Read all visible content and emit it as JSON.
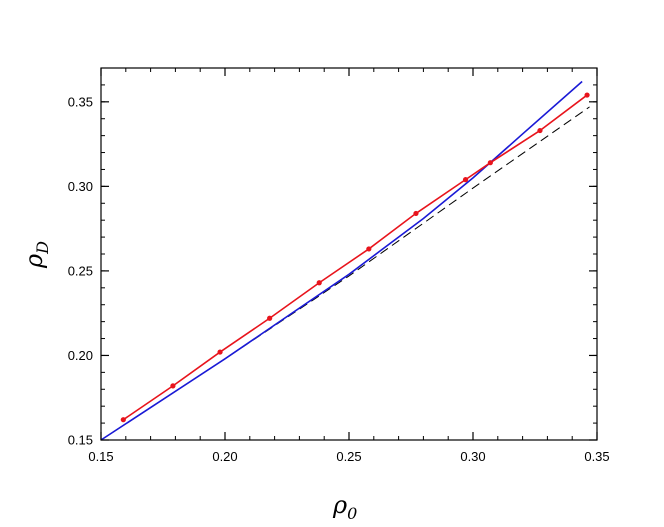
{
  "chart_data": {
    "type": "line",
    "xlabel": "ρ",
    "xlabel_sub": "0",
    "ylabel": "ρ",
    "ylabel_sub": "D",
    "xlim": [
      0.15,
      0.35
    ],
    "ylim": [
      0.15,
      0.37
    ],
    "xticks": [
      0.15,
      0.2,
      0.25,
      0.3,
      0.35
    ],
    "xtick_labels": [
      "0.15",
      "0.20",
      "0.25",
      "0.30",
      "0.35"
    ],
    "yticks": [
      0.15,
      0.2,
      0.25,
      0.3,
      0.35
    ],
    "ytick_labels": [
      "0.15",
      "0.20",
      "0.25",
      "0.30",
      "0.35"
    ],
    "grid": false,
    "series": [
      {
        "color": "#e8141c",
        "style": "solid-with-markers",
        "x": [
          0.159,
          0.179,
          0.198,
          0.218,
          0.238,
          0.258,
          0.277,
          0.297,
          0.307,
          0.327,
          0.346
        ],
        "y": [
          0.162,
          0.182,
          0.202,
          0.222,
          0.243,
          0.263,
          0.284,
          0.304,
          0.314,
          0.333,
          0.354
        ]
      },
      {
        "color": "#1a1ad6",
        "style": "solid",
        "x": [
          0.15,
          0.2,
          0.25,
          0.28,
          0.3,
          0.32,
          0.344
        ],
        "y": [
          0.15,
          0.198,
          0.248,
          0.281,
          0.305,
          0.331,
          0.362
        ]
      },
      {
        "color": "#000000",
        "style": "dashed",
        "x": [
          0.15,
          0.2,
          0.25,
          0.3,
          0.347
        ],
        "y": [
          0.15,
          0.198,
          0.247,
          0.299,
          0.347
        ]
      }
    ]
  }
}
